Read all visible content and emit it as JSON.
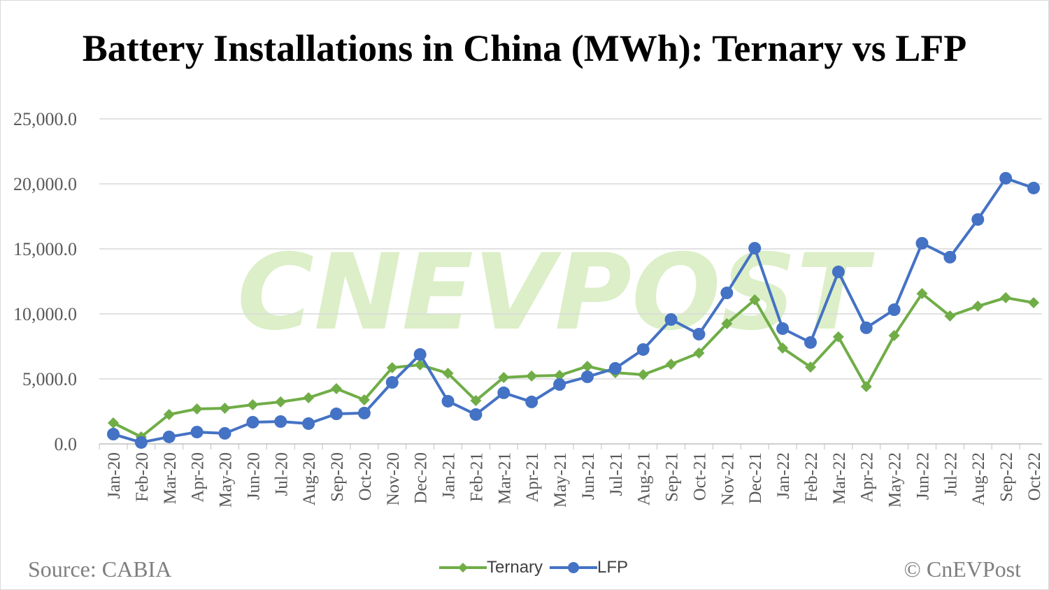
{
  "chart_data": {
    "type": "line",
    "title": "Battery Installations in China (MWh): Ternary vs LFP",
    "xlabel": "",
    "ylabel": "",
    "ylim": [
      0,
      25000
    ],
    "yticks": [
      "0.0",
      "5,000.0",
      "10,000.0",
      "15,000.0",
      "20,000.0",
      "25,000.0"
    ],
    "grid": true,
    "legend_position": "bottom",
    "categories": [
      "Jan-20",
      "Feb-20",
      "Mar-20",
      "Apr-20",
      "May-20",
      "Jun-20",
      "Jul-20",
      "Aug-20",
      "Sep-20",
      "Oct-20",
      "Nov-20",
      "Dec-20",
      "Jan-21",
      "Feb-21",
      "Mar-21",
      "Apr-21",
      "May-21",
      "Jun-21",
      "Jul-21",
      "Aug-21",
      "Sep-21",
      "Oct-21",
      "Nov-21",
      "Dec-21",
      "Jan-22",
      "Feb-22",
      "Mar-22",
      "Apr-22",
      "May-22",
      "Jun-22",
      "Jul-22",
      "Aug-22",
      "Sep-22",
      "Oct-22"
    ],
    "series": [
      {
        "name": "Ternary",
        "color": "#70ad47",
        "marker": "diamond",
        "values": [
          1610,
          540,
          2260,
          2690,
          2740,
          3010,
          3230,
          3550,
          4250,
          3390,
          5860,
          6080,
          5430,
          3330,
          5110,
          5220,
          5270,
          5970,
          5480,
          5320,
          6130,
          6990,
          9250,
          11080,
          7370,
          5910,
          8230,
          4410,
          8330,
          11560,
          9840,
          10590,
          11240,
          10860
        ]
      },
      {
        "name": "LFP",
        "color": "#4472c4",
        "marker": "circle",
        "values": [
          750,
          110,
          540,
          910,
          810,
          1670,
          1720,
          1560,
          2310,
          2370,
          4730,
          6880,
          3280,
          2260,
          3930,
          3230,
          4570,
          5160,
          5810,
          7260,
          9570,
          8440,
          11610,
          15050,
          8870,
          7800,
          13230,
          8930,
          10320,
          15430,
          14360,
          17260,
          20430,
          19680
        ]
      }
    ]
  },
  "footer": {
    "source": "Source: CABIA",
    "copyright": "© CnEVPost"
  },
  "watermark": "CNEVPOST",
  "colors": {
    "grid": "#d9d9d9",
    "axis_text": "#595959",
    "watermark": "#dcefc8"
  }
}
